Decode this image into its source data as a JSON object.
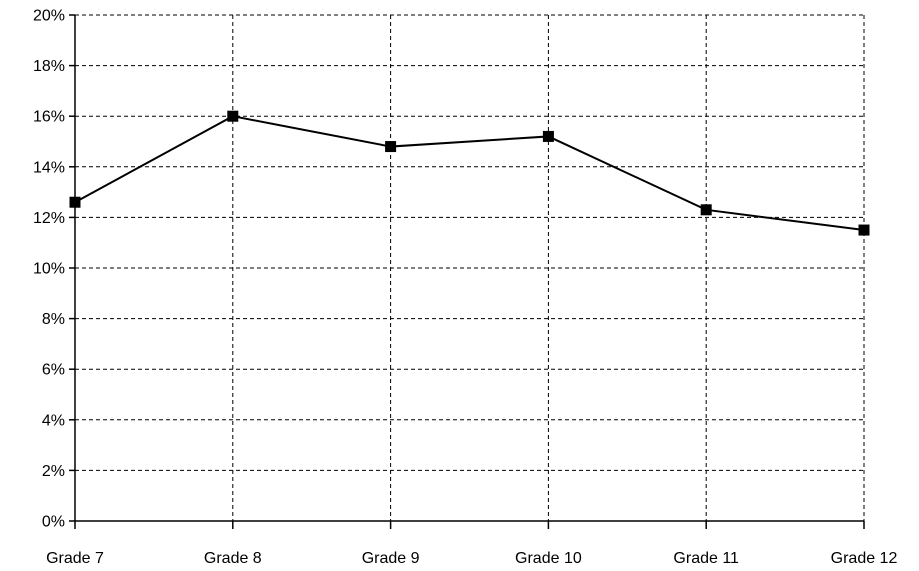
{
  "chart_data": {
    "type": "line",
    "categories": [
      "Grade 7",
      "Grade 8",
      "Grade 9",
      "Grade 10",
      "Grade 11",
      "Grade 12"
    ],
    "series": [
      {
        "values": [
          12.6,
          16.0,
          14.8,
          15.2,
          12.3,
          11.5
        ]
      }
    ],
    "y_ticks": [
      "0%",
      "2%",
      "4%",
      "6%",
      "8%",
      "10%",
      "12%",
      "14%",
      "16%",
      "18%",
      "20%"
    ],
    "ylim": [
      0,
      20
    ],
    "grid": true,
    "legend": "none",
    "title": "",
    "xlabel": "",
    "ylabel": "",
    "colors": {
      "line": "#000000",
      "marker": "#000000",
      "grid": "#000000",
      "background": "#ffffff"
    }
  }
}
